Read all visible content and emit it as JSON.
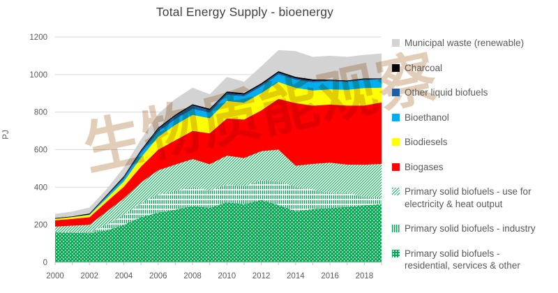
{
  "watermark": {
    "text": "生物质能观察"
  },
  "colors": {
    "background": "#ffffff",
    "title_text": "#404040",
    "axis_text": "#595959",
    "gridline": "#d9d9d9",
    "axis_line": "#bfbfbf",
    "watermark": "#b98a55",
    "solid_biofuel_green": "#00A850",
    "biogases_red": "#FF0000",
    "biodiesels_yellow": "#FFFF00",
    "bioethanol_blue": "#00AEEF",
    "other_liquid_navy": "#1A5EA8",
    "charcoal_black": "#000000",
    "municipal_gray": "#D3D3D3"
  },
  "chart_data": {
    "type": "area",
    "stacked": true,
    "title": "Total Energy Supply - bioenergy",
    "ylabel": "PJ",
    "xlabel": "",
    "ylim": [
      0,
      1200
    ],
    "y_ticks": [
      0,
      200,
      400,
      600,
      800,
      1000,
      1200
    ],
    "x": [
      2000,
      2001,
      2002,
      2003,
      2004,
      2005,
      2006,
      2007,
      2008,
      2009,
      2010,
      2011,
      2012,
      2013,
      2014,
      2015,
      2016,
      2017,
      2018,
      2019
    ],
    "x_tick_labels": [
      "2000",
      "2002",
      "2004",
      "2006",
      "2008",
      "2010",
      "2012",
      "2014",
      "2016",
      "2018"
    ],
    "grid": true,
    "legend_position": "right",
    "series": [
      {
        "name": "Primary solid biofuels - residential, services & other",
        "color": "#00A850",
        "pattern": "dots",
        "values": [
          160,
          158,
          155,
          170,
          200,
          240,
          265,
          280,
          300,
          290,
          320,
          310,
          332,
          305,
          272,
          283,
          289,
          295,
          304,
          310
        ]
      },
      {
        "name": "Primary solid biofuels - industry",
        "color": "#00A850",
        "pattern": "vlines",
        "values": [
          0,
          2,
          5,
          30,
          55,
          75,
          95,
          100,
          100,
          92,
          93,
          95,
          105,
          125,
          130,
          105,
          80,
          75,
          45,
          35
        ]
      },
      {
        "name": "Primary solid biofuels - use for electricity & heat output",
        "color": "#00A850",
        "pattern": "diag",
        "values": [
          30,
          35,
          40,
          70,
          85,
          110,
          130,
          140,
          150,
          140,
          155,
          150,
          155,
          170,
          112,
          136,
          161,
          150,
          170,
          179
        ]
      },
      {
        "name": "Biogases",
        "color": "#FF0000",
        "pattern": null,
        "values": [
          34,
          36,
          40,
          52,
          62,
          85,
          110,
          130,
          150,
          165,
          198,
          205,
          217,
          270,
          334,
          310,
          310,
          315,
          316,
          328
        ]
      },
      {
        "name": "Biodiesels",
        "color": "#FFFF00",
        "pattern": null,
        "values": [
          8,
          10,
          12,
          18,
          28,
          48,
          68,
          82,
          85,
          80,
          93,
          90,
          92,
          90,
          81,
          81,
          81,
          83,
          93,
          78
        ]
      },
      {
        "name": "Bioethanol",
        "color": "#00AEEF",
        "pattern": null,
        "values": [
          0,
          0,
          3,
          10,
          14,
          22,
          27,
          30,
          32,
          30,
          33,
          33,
          35,
          40,
          43,
          43,
          43,
          42,
          43,
          43
        ]
      },
      {
        "name": "Other liquid biofuels",
        "color": "#1A5EA8",
        "pattern": null,
        "values": [
          0,
          0,
          0,
          3,
          8,
          12,
          15,
          18,
          18,
          14,
          10,
          10,
          10,
          10,
          8,
          8,
          4,
          4,
          4,
          3
        ]
      },
      {
        "name": "Charcoal",
        "color": "#000000",
        "pattern": null,
        "values": [
          4,
          4,
          5,
          6,
          7,
          7,
          7,
          7,
          7,
          7,
          8,
          8,
          8,
          8,
          8,
          8,
          5,
          5,
          5,
          4
        ]
      },
      {
        "name": "Municipal waste (renewable)",
        "color": "#D3D3D3",
        "pattern": null,
        "values": [
          22,
          25,
          32,
          31,
          46,
          56,
          73,
          83,
          88,
          77,
          77,
          60,
          90,
          112,
          137,
          120,
          127,
          125,
          125,
          132
        ]
      }
    ]
  }
}
